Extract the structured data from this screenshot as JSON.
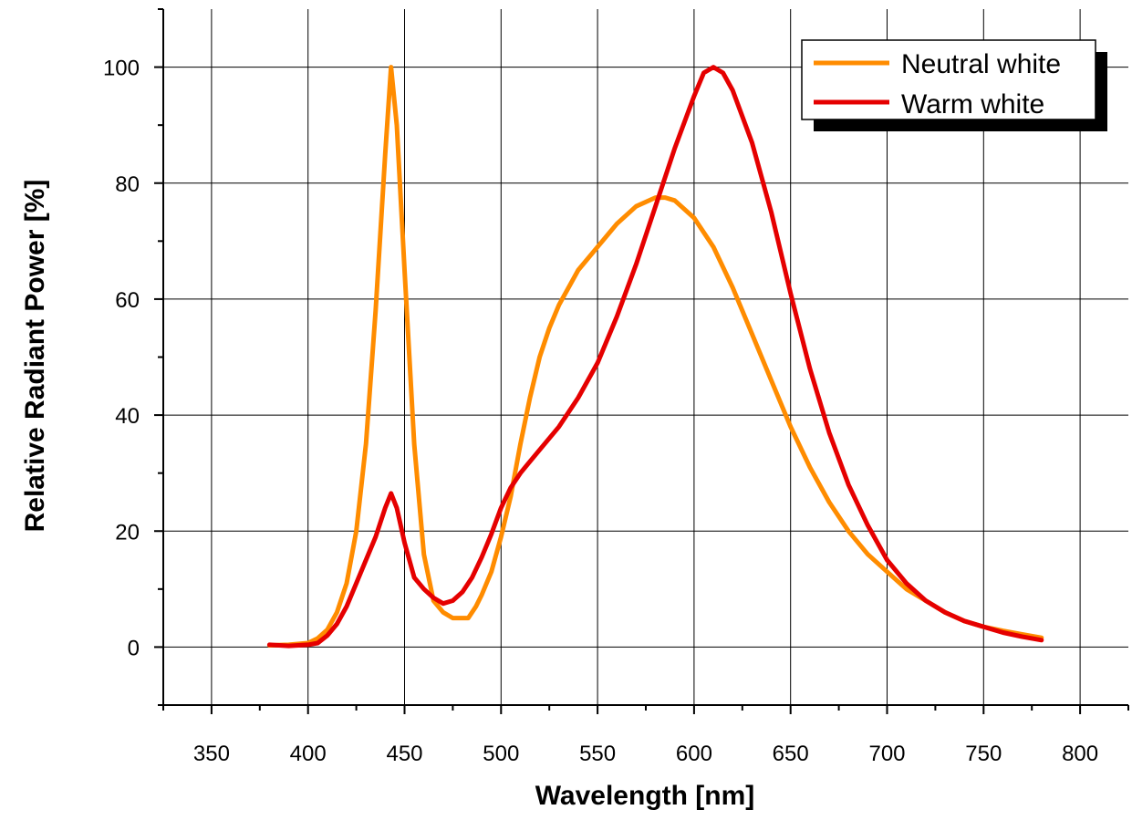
{
  "chart_data": {
    "type": "line",
    "xlabel": "Wavelength [nm]",
    "ylabel": "Relative Radiant Power [%]",
    "xlim": [
      325,
      825
    ],
    "ylim": [
      -10,
      110
    ],
    "xticks": [
      350,
      400,
      450,
      500,
      550,
      600,
      650,
      700,
      750,
      800
    ],
    "yticks": [
      0,
      20,
      40,
      60,
      80,
      100
    ],
    "grid": true,
    "legend_position": "top-right",
    "series": [
      {
        "name": "Neutral white",
        "color": "#ff8c00",
        "x": [
          380,
          390,
          400,
          405,
          410,
          415,
          420,
          425,
          430,
          435,
          440,
          443,
          446,
          450,
          455,
          460,
          465,
          470,
          475,
          480,
          483,
          487,
          490,
          495,
          500,
          505,
          510,
          515,
          520,
          525,
          530,
          540,
          550,
          560,
          570,
          580,
          585,
          590,
          600,
          610,
          620,
          630,
          640,
          650,
          660,
          670,
          680,
          690,
          700,
          710,
          720,
          730,
          740,
          750,
          760,
          770,
          780
        ],
        "y": [
          0.3,
          0.4,
          0.7,
          1.5,
          3,
          6,
          11,
          20,
          35,
          58,
          85,
          100,
          90,
          65,
          35,
          16,
          8,
          6,
          5,
          5,
          5,
          7,
          9,
          13,
          19,
          26,
          35,
          43,
          50,
          55,
          59,
          65,
          69,
          73,
          76,
          77.5,
          77.5,
          77,
          74,
          69,
          62,
          54,
          46,
          38,
          31,
          25,
          20,
          16,
          13,
          10,
          8,
          6,
          4.5,
          3.5,
          2.8,
          2.2,
          1.6
        ]
      },
      {
        "name": "Warm white",
        "color": "#e50000",
        "x": [
          380,
          390,
          400,
          405,
          410,
          415,
          420,
          425,
          430,
          435,
          440,
          443,
          446,
          450,
          455,
          460,
          465,
          470,
          475,
          480,
          485,
          490,
          495,
          500,
          505,
          510,
          515,
          520,
          530,
          540,
          550,
          560,
          570,
          580,
          590,
          600,
          605,
          610,
          615,
          620,
          630,
          640,
          650,
          660,
          670,
          680,
          690,
          700,
          710,
          720,
          730,
          740,
          750,
          760,
          770,
          780
        ],
        "y": [
          0.4,
          0.2,
          0.4,
          0.7,
          2,
          4,
          7,
          11,
          15,
          19,
          24,
          26.5,
          24,
          18,
          12,
          10,
          8.5,
          7.5,
          8,
          9.5,
          12,
          15.5,
          19.5,
          24,
          27.5,
          30,
          32,
          34,
          38,
          43,
          49,
          57,
          66,
          76,
          86,
          95,
          99,
          100,
          99,
          96,
          87,
          75,
          61,
          48,
          37,
          28,
          21,
          15,
          11,
          8,
          6,
          4.5,
          3.5,
          2.5,
          1.8,
          1.2
        ]
      }
    ]
  }
}
